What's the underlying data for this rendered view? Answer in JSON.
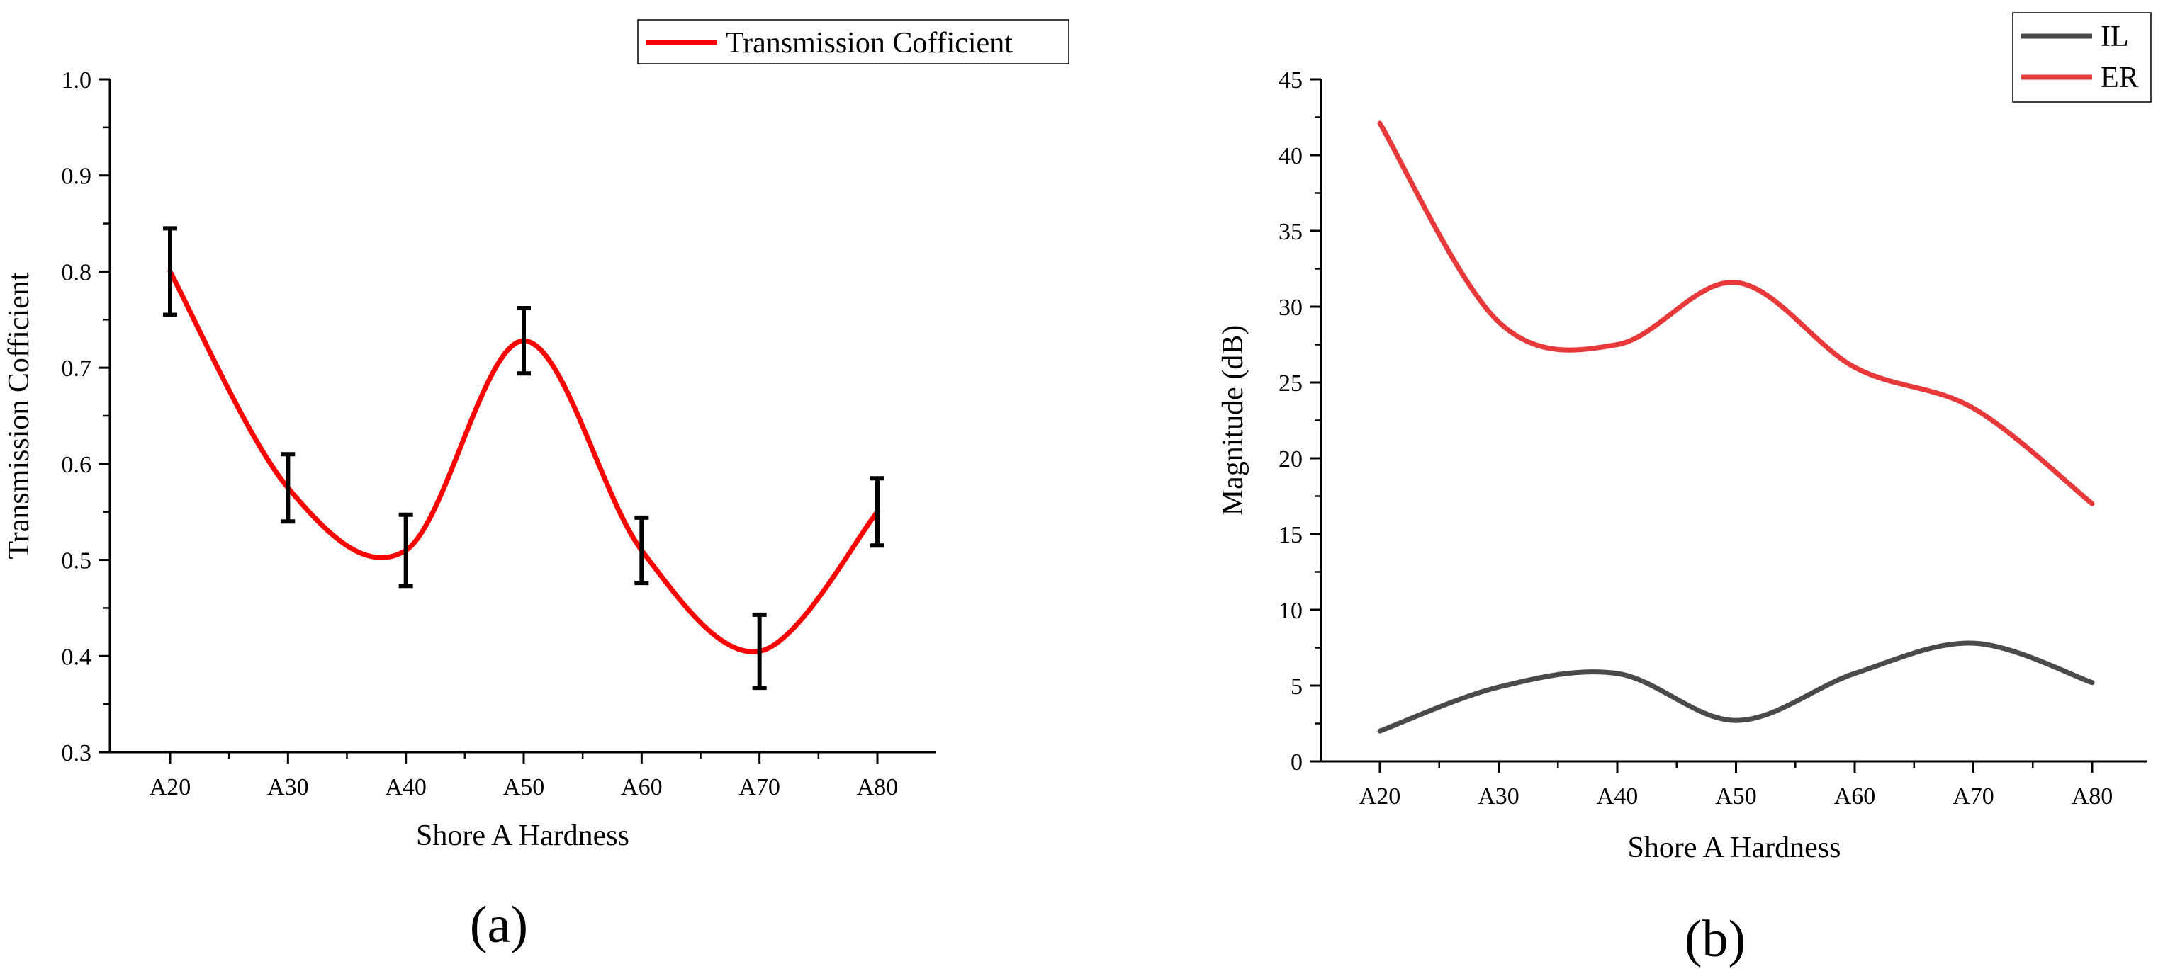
{
  "chart_data": [
    {
      "type": "line",
      "panel_label": "(a)",
      "title": "",
      "xlabel": "Shore A Hardness",
      "ylabel": "Transmission Cofficient",
      "categories": [
        "A20",
        "A30",
        "A40",
        "A50",
        "A60",
        "A70",
        "A80"
      ],
      "ylim": [
        0.3,
        1.0
      ],
      "yticks": [
        "0.3",
        "0.4",
        "0.5",
        "0.6",
        "0.7",
        "0.8",
        "0.9",
        "1.0"
      ],
      "legend_position": "top-right",
      "series": [
        {
          "name": "Transmission Cofficient",
          "color": "#ff0000",
          "values": [
            0.8,
            0.575,
            0.51,
            0.728,
            0.51,
            0.405,
            0.55
          ],
          "error": [
            0.045,
            0.035,
            0.037,
            0.034,
            0.034,
            0.038,
            0.035
          ]
        }
      ]
    },
    {
      "type": "line",
      "panel_label": "(b)",
      "title": "",
      "xlabel": "Shore A Hardness",
      "ylabel": "Magnitude (dB)",
      "categories": [
        "A20",
        "A30",
        "A40",
        "A50",
        "A60",
        "A70",
        "A80"
      ],
      "ylim": [
        0,
        45
      ],
      "yticks": [
        "0",
        "5",
        "10",
        "15",
        "20",
        "25",
        "30",
        "35",
        "40",
        "45"
      ],
      "legend_position": "top-right",
      "series": [
        {
          "name": "IL",
          "color": "#4a4a4a",
          "values": [
            2.0,
            4.9,
            5.8,
            2.7,
            5.8,
            7.8,
            5.2
          ]
        },
        {
          "name": "ER",
          "color": "#e8393a",
          "values": [
            42.1,
            29.0,
            27.5,
            31.6,
            26.0,
            23.3,
            17.0
          ]
        }
      ]
    }
  ]
}
